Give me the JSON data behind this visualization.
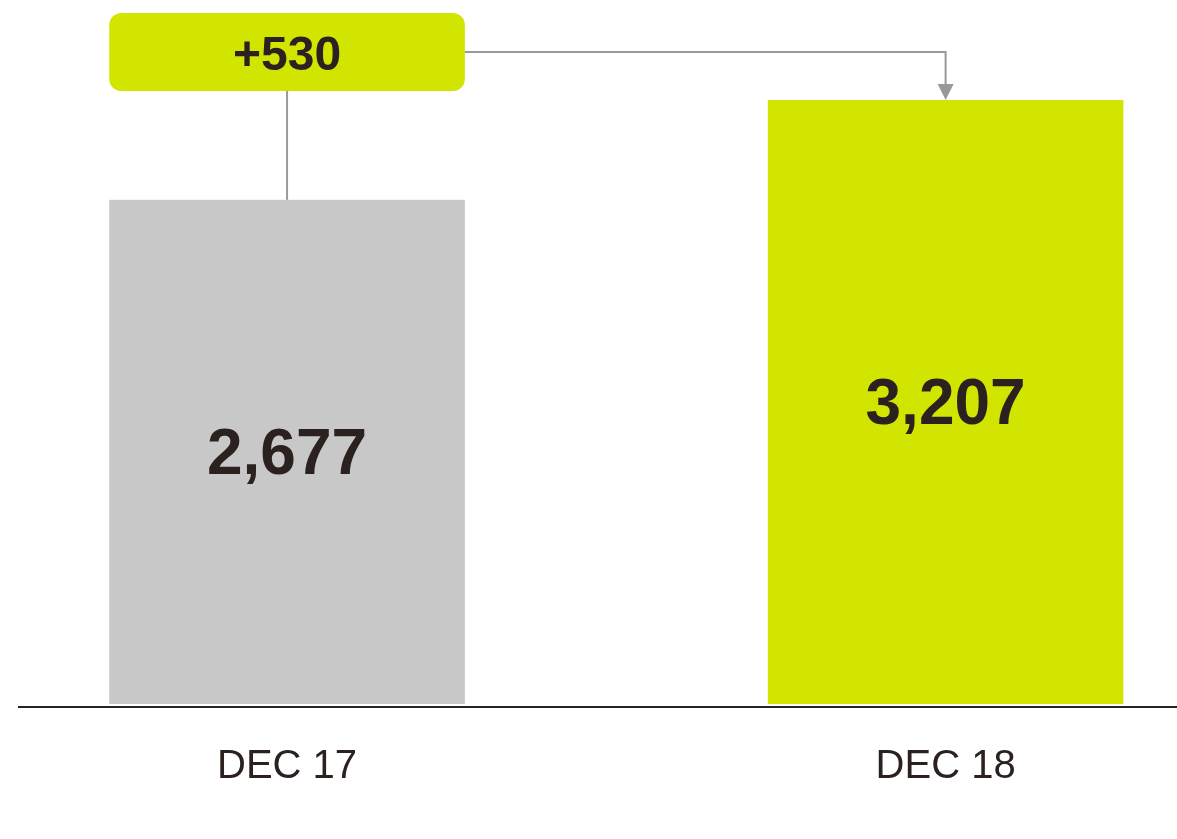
{
  "chart_data": {
    "type": "bar",
    "categories": [
      "DEC 17",
      "DEC 18"
    ],
    "values": [
      2677,
      3207
    ],
    "colors": [
      "#c8c8c8",
      "#d2e500"
    ],
    "value_labels": [
      "2,677",
      "3,207"
    ],
    "annotations": [
      "+530"
    ]
  }
}
